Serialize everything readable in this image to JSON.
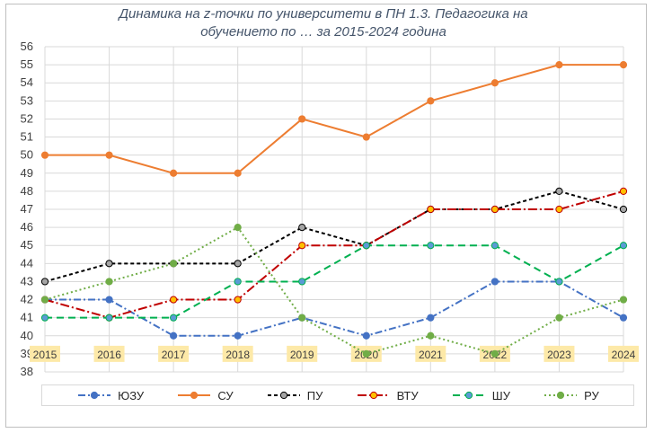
{
  "chart_data": {
    "type": "line",
    "title": "Динамика на z-точки по университети в ПН 1.3. Педагогика на обучението по … за 2015-2024 година",
    "title_lines": [
      "Динамика на z-точки по университети в ПН 1.3. Педагогика на",
      "обучението по … за 2015-2024 година"
    ],
    "x": [
      "2015",
      "2016",
      "2017",
      "2018",
      "2019",
      "2020",
      "2021",
      "2022",
      "2023",
      "2024"
    ],
    "ylim": [
      38,
      56
    ],
    "yticks": [
      "38",
      "39",
      "40",
      "41",
      "42",
      "43",
      "44",
      "45",
      "46",
      "47",
      "48",
      "49",
      "50",
      "51",
      "52",
      "53",
      "54",
      "55",
      "56"
    ],
    "grid": true,
    "legend_position": "bottom",
    "series": [
      {
        "name": "ЮЗУ",
        "values": [
          42,
          42,
          40,
          40,
          41,
          40,
          41,
          43,
          43,
          41
        ],
        "color": "#4472c4",
        "marker": "#4472c4",
        "dash": "8 3 2 3"
      },
      {
        "name": "СУ",
        "values": [
          50,
          50,
          49,
          49,
          52,
          51,
          53,
          54,
          55,
          55
        ],
        "color": "#ed7d31",
        "marker": "#ed7d31",
        "dash": ""
      },
      {
        "name": "ПУ",
        "values": [
          43,
          44,
          44,
          44,
          46,
          45,
          47,
          47,
          48,
          47
        ],
        "color": "#000000",
        "marker": "#a5a5a5",
        "dash": "4 3"
      },
      {
        "name": "ВТУ",
        "values": [
          42,
          41,
          42,
          42,
          45,
          45,
          47,
          47,
          47,
          48
        ],
        "color": "#c00000",
        "marker": "#ffc000",
        "dash": "10 3 2 3"
      },
      {
        "name": "ШУ",
        "values": [
          41,
          41,
          41,
          43,
          43,
          45,
          45,
          45,
          43,
          45
        ],
        "color": "#00b050",
        "marker": "#5b9bd5",
        "dash": "8 5"
      },
      {
        "name": "РУ",
        "values": [
          42,
          43,
          44,
          46,
          41,
          39,
          40,
          39,
          41,
          42
        ],
        "color": "#70ad47",
        "marker": "#70ad47",
        "dash": "2 3"
      }
    ]
  }
}
